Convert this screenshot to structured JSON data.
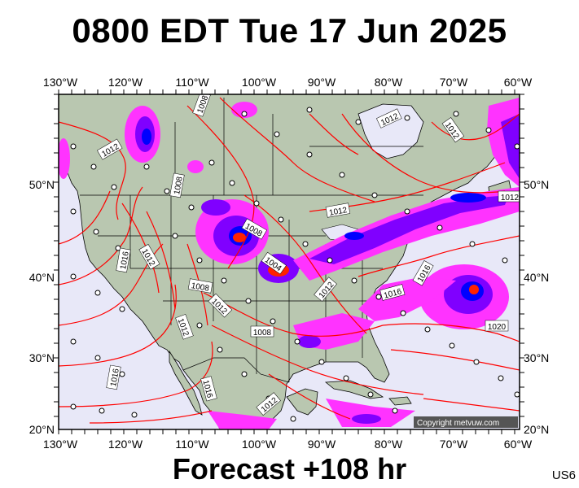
{
  "header": {
    "title": "0800 EDT Tue 17 Jun 2025"
  },
  "footer": {
    "forecast": "Forecast +108 hr",
    "region_code": "US6"
  },
  "map": {
    "copyright": "Copyright metvuw.com",
    "lon_labels_top": [
      "130°W",
      "120°W",
      "110°W",
      "100°W",
      "90°W",
      "80°W",
      "70°W",
      "60°W"
    ],
    "lon_labels_bottom": [
      "130°W",
      "120°W",
      "110°W",
      "100°W",
      "90°W",
      "80°W",
      "70°W",
      "60°W"
    ],
    "lat_labels_left": [
      "50°N",
      "40°N",
      "30°N",
      "20°N"
    ],
    "lat_labels_right": [
      "50°N",
      "40°N",
      "30°N",
      "20°N"
    ],
    "isobar_labels": [
      "1008",
      "1012",
      "1012",
      "1012",
      "1008",
      "1012",
      "1016",
      "1012",
      "1004",
      "1008",
      "1008",
      "1012",
      "1012",
      "1016",
      "1016",
      "1012",
      "1016",
      "1016",
      "1020",
      "1012",
      "1008",
      "1012"
    ],
    "colors": {
      "ocean": "#e8e8f8",
      "land": "#b9c7b0",
      "isobar": "#ff0000",
      "border": "#000000",
      "precip_light": "#ff33ff",
      "precip_mid": "#8000ff",
      "precip_heavy": "#0000ff",
      "precip_extreme": "#ff0000"
    }
  }
}
